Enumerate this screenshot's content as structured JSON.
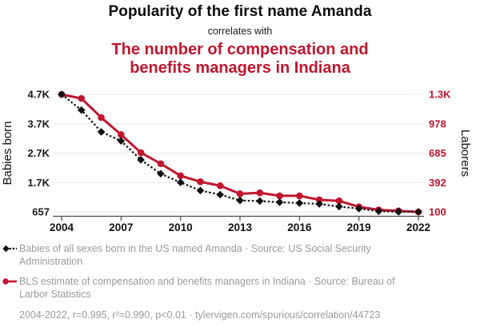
{
  "header": {
    "title": "Popularity of the first name Amanda",
    "connector": "correlates with",
    "title2": "The number of compensation and benefits managers in Indiana"
  },
  "colors": {
    "accent_red": "#c0162e",
    "text_dark": "#111111",
    "legend_gray": "#9a9a9a",
    "grid": "#e7e7e7",
    "axis": "#4a4a4a"
  },
  "chart_data": {
    "type": "line",
    "x": [
      2004,
      2005,
      2006,
      2007,
      2008,
      2009,
      2010,
      2011,
      2012,
      2013,
      2014,
      2015,
      2016,
      2017,
      2018,
      2019,
      2020,
      2021,
      2022
    ],
    "x_ticks": [
      2004,
      2007,
      2010,
      2013,
      2016,
      2019,
      2022
    ],
    "series": [
      {
        "name": "Babies of all sexes born in the US named Amanda",
        "axis": "left",
        "color": "#111111",
        "style": "dashed",
        "marker": "diamond",
        "values": [
          4701,
          4160,
          3410,
          3100,
          2450,
          1970,
          1670,
          1390,
          1250,
          1050,
          1030,
          990,
          960,
          930,
          840,
          770,
          680,
          660,
          657
        ]
      },
      {
        "name": "BLS estimate of compensation and benefits managers in Indiana",
        "axis": "right",
        "color": "#c0162e",
        "style": "solid",
        "marker": "circle",
        "values": [
          1270,
          1230,
          1040,
          870,
          690,
          580,
          460,
          400,
          360,
          280,
          290,
          260,
          260,
          220,
          210,
          150,
          120,
          110,
          100
        ]
      }
    ],
    "left_axis": {
      "label": "Babies born",
      "tick_labels": [
        "4.7K",
        "3.7K",
        "2.7K",
        "1.7K",
        "657"
      ],
      "tick_values": [
        4701,
        3690,
        2679,
        1668,
        657
      ],
      "range": [
        657,
        4701
      ]
    },
    "right_axis": {
      "label": "Laborers",
      "tick_labels": [
        "1.3K",
        "978",
        "685",
        "392",
        "100"
      ],
      "tick_values": [
        1271,
        978,
        685,
        392,
        100
      ],
      "range": [
        100,
        1271
      ]
    },
    "grid": true,
    "legend_position": "bottom-left"
  },
  "legend": {
    "items": [
      {
        "label": "Babies of all sexes born in the US named Amanda · Source: US Social Security Administration",
        "marker": "black-diamond-dashed"
      },
      {
        "label": "BLS estimate of compensation and benefits managers in Indiana · Source: Bureau of Larbor Statistics",
        "marker": "red-circle-solid"
      }
    ]
  },
  "footer": {
    "text": "2004-2022, r=0.995, r²=0.990, p<0.01 · tylervigen.com/spurious/correlation/44723"
  }
}
